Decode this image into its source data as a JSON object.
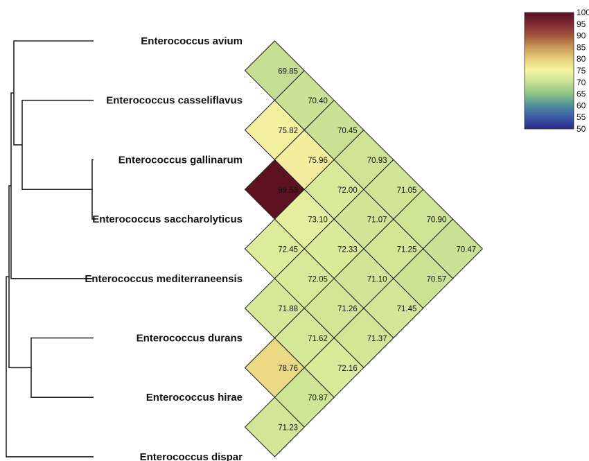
{
  "chart_data": {
    "type": "heatmap",
    "title": "",
    "taxa": [
      "Enterococcus avium",
      "Enterococcus casseliflavus",
      "Enterococcus gallinarum",
      "Enterococcus saccharolyticus",
      "Enterococcus mediterraneensis",
      "Enterococcus durans",
      "Enterococcus hirae",
      "Enterococcus dispar"
    ],
    "cells": [
      {
        "i": 0,
        "j": 1,
        "label": "69.85",
        "value": 69.85
      },
      {
        "i": 0,
        "j": 2,
        "label": "70.40",
        "value": 70.4
      },
      {
        "i": 0,
        "j": 3,
        "label": "70.45",
        "value": 70.45
      },
      {
        "i": 0,
        "j": 4,
        "label": "70.93",
        "value": 70.93
      },
      {
        "i": 0,
        "j": 5,
        "label": "71.05",
        "value": 71.05
      },
      {
        "i": 0,
        "j": 6,
        "label": "70.90",
        "value": 70.9
      },
      {
        "i": 0,
        "j": 7,
        "label": "70.47",
        "value": 70.47
      },
      {
        "i": 1,
        "j": 2,
        "label": "75.82",
        "value": 75.82
      },
      {
        "i": 1,
        "j": 3,
        "label": "75.96",
        "value": 75.96
      },
      {
        "i": 1,
        "j": 4,
        "label": "72.00",
        "value": 72.0
      },
      {
        "i": 1,
        "j": 5,
        "label": "71.07",
        "value": 71.07
      },
      {
        "i": 1,
        "j": 6,
        "label": "71.25",
        "value": 71.25
      },
      {
        "i": 1,
        "j": 7,
        "label": "70.57",
        "value": 70.57
      },
      {
        "i": 2,
        "j": 3,
        "label": "99.53",
        "value": 99.53
      },
      {
        "i": 2,
        "j": 4,
        "label": "73.10",
        "value": 73.1
      },
      {
        "i": 2,
        "j": 5,
        "label": "72.33",
        "value": 72.33
      },
      {
        "i": 2,
        "j": 6,
        "label": "71.10",
        "value": 71.1
      },
      {
        "i": 2,
        "j": 7,
        "label": "71.45",
        "value": 71.45
      },
      {
        "i": 3,
        "j": 4,
        "label": "72.45",
        "value": 72.45
      },
      {
        "i": 3,
        "j": 5,
        "label": "72.05",
        "value": 72.05
      },
      {
        "i": 3,
        "j": 6,
        "label": "71.26",
        "value": 71.26
      },
      {
        "i": 3,
        "j": 7,
        "label": "71.37",
        "value": 71.37
      },
      {
        "i": 4,
        "j": 5,
        "label": "71.88",
        "value": 71.88
      },
      {
        "i": 4,
        "j": 6,
        "label": "71.62",
        "value": 71.62
      },
      {
        "i": 4,
        "j": 7,
        "label": "72.16",
        "value": 72.16
      },
      {
        "i": 5,
        "j": 6,
        "label": "78.76",
        "value": 78.76
      },
      {
        "i": 5,
        "j": 7,
        "label": "70.87",
        "value": 70.87
      },
      {
        "i": 6,
        "j": 7,
        "label": "71.23",
        "value": 71.23
      }
    ],
    "colorbar": {
      "min": 50,
      "max": 100,
      "ticks": [
        "100",
        "95",
        "90",
        "85",
        "80",
        "75",
        "70",
        "65",
        "60",
        "55",
        "50"
      ],
      "stops": [
        {
          "value": 50,
          "color": "#2b2a8a"
        },
        {
          "value": 55,
          "color": "#3a5aa5"
        },
        {
          "value": 60,
          "color": "#4f8f9b"
        },
        {
          "value": 65,
          "color": "#8fc487"
        },
        {
          "value": 70,
          "color": "#c6e093"
        },
        {
          "value": 75,
          "color": "#f5f6a6"
        },
        {
          "value": 80,
          "color": "#e8cf7c"
        },
        {
          "value": 85,
          "color": "#c99a5a"
        },
        {
          "value": 90,
          "color": "#a3573c"
        },
        {
          "value": 95,
          "color": "#7f2834"
        },
        {
          "value": 100,
          "color": "#5a1020"
        }
      ]
    },
    "dendrogram": {
      "leaves": [
        0,
        1,
        2,
        3,
        4,
        5,
        6,
        7
      ],
      "merges": [
        {
          "a": "L2",
          "b": "L3",
          "id": "N1"
        },
        {
          "a": "L1",
          "b": "N1",
          "id": "N2"
        },
        {
          "a": "L5",
          "b": "L6",
          "id": "N3"
        },
        {
          "a": "L0",
          "b": "N2",
          "id": "N4"
        },
        {
          "a": "N4",
          "b": "L4",
          "id": "N5"
        },
        {
          "a": "N5",
          "b": "N3",
          "id": "N6"
        },
        {
          "a": "N6",
          "b": "L7",
          "id": "N7"
        }
      ]
    }
  }
}
